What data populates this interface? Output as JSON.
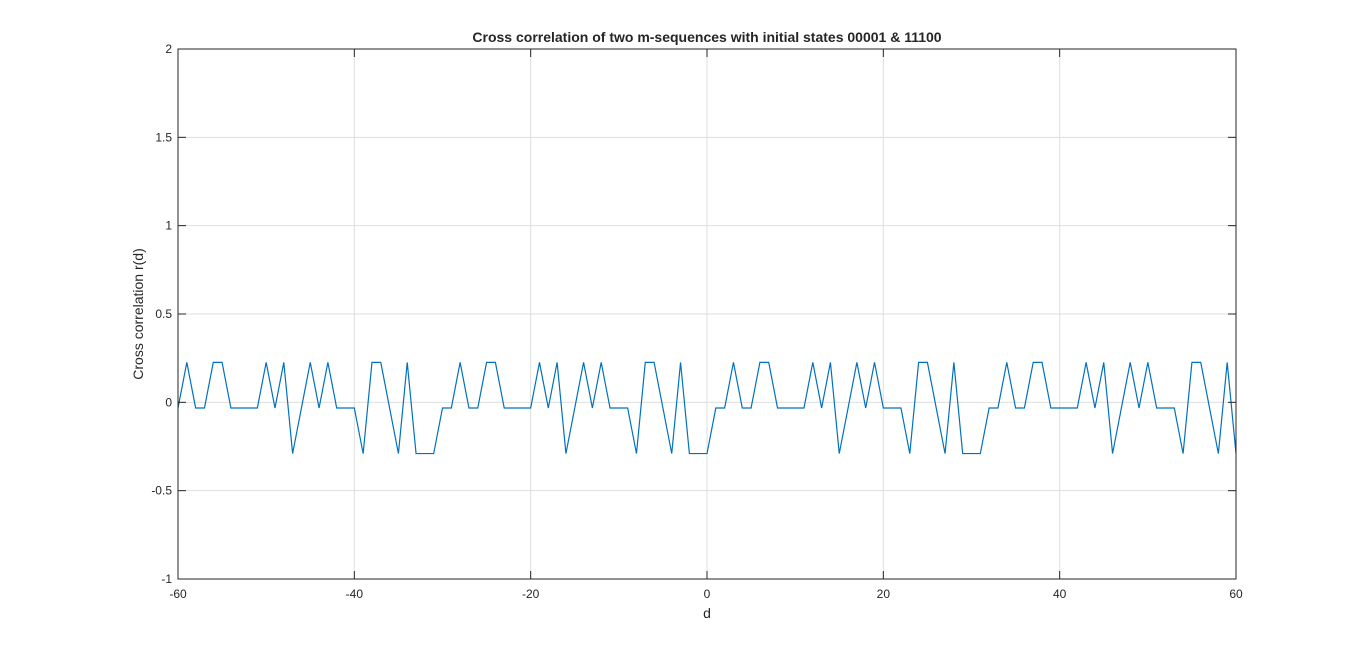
{
  "chart_data": {
    "type": "line",
    "title": "Cross correlation of two m-sequences with initial states 00001 & 11100",
    "xlabel": "d",
    "ylabel": "Cross correlation r(d)",
    "xlim": [
      -60,
      60
    ],
    "ylim": [
      -1,
      2
    ],
    "xticks": [
      -60,
      -40,
      -20,
      0,
      20,
      40,
      60
    ],
    "xtick_labels": [
      "-60",
      "-40",
      "-20",
      "0",
      "20",
      "40",
      "60"
    ],
    "yticks": [
      -1,
      -0.5,
      0,
      0.5,
      1,
      1.5,
      2
    ],
    "ytick_labels": [
      "-1",
      "-0.5",
      "0",
      "0.5",
      "1",
      "1.5",
      "2"
    ],
    "grid": true,
    "line_color": "#0072BD",
    "series": [
      {
        "x": [
          -60,
          -59,
          -58,
          -57,
          -56,
          -55,
          -54,
          -53,
          -52,
          -51,
          -50,
          -49,
          -48,
          -47,
          -46,
          -45,
          -44,
          -43,
          -42,
          -41,
          -40,
          -39,
          -38,
          -37,
          -36,
          -35,
          -34,
          -33,
          -32,
          -31,
          -30,
          -29,
          -28,
          -27,
          -26,
          -25,
          -24,
          -23,
          -22,
          -21,
          -20,
          -19,
          -18,
          -17,
          -16,
          -15,
          -14,
          -13,
          -12,
          -11,
          -10,
          -9,
          -8,
          -7,
          -6,
          -5,
          -4,
          -3,
          -2,
          -1,
          0,
          1,
          2,
          3,
          4,
          5,
          6,
          7,
          8,
          9,
          10,
          11,
          12,
          13,
          14,
          15,
          16,
          17,
          18,
          19,
          20,
          21,
          22,
          23,
          24,
          25,
          26,
          27,
          28,
          29,
          30,
          31,
          32,
          33,
          34,
          35,
          36,
          37,
          38,
          39,
          40,
          41,
          42,
          43,
          44,
          45,
          46,
          47,
          48,
          49,
          50,
          51,
          52,
          53,
          54,
          55,
          56,
          57,
          58,
          59,
          60
        ],
        "y": [
          -0.032,
          0.226,
          -0.032,
          -0.032,
          0.226,
          0.226,
          -0.032,
          -0.032,
          -0.032,
          -0.032,
          0.226,
          -0.032,
          0.226,
          -0.29,
          -0.032,
          0.226,
          -0.032,
          0.226,
          -0.032,
          -0.032,
          -0.032,
          -0.29,
          0.226,
          0.226,
          -0.032,
          -0.29,
          0.226,
          -0.29,
          -0.29,
          -0.29,
          -0.032,
          -0.032,
          0.226,
          -0.032,
          -0.032,
          0.226,
          0.226,
          -0.032,
          -0.032,
          -0.032,
          -0.032,
          0.226,
          -0.032,
          0.226,
          -0.29,
          -0.032,
          0.226,
          -0.032,
          0.226,
          -0.032,
          -0.032,
          -0.032,
          -0.29,
          0.226,
          0.226,
          -0.032,
          -0.29,
          0.226,
          -0.29,
          -0.29,
          -0.29,
          -0.032,
          -0.032,
          0.226,
          -0.032,
          -0.032,
          0.226,
          0.226,
          -0.032,
          -0.032,
          -0.032,
          -0.032,
          0.226,
          -0.032,
          0.226,
          -0.29,
          -0.032,
          0.226,
          -0.032,
          0.226,
          -0.032,
          -0.032,
          -0.032,
          -0.29,
          0.226,
          0.226,
          -0.032,
          -0.29,
          0.226,
          -0.29,
          -0.29,
          -0.29,
          -0.032,
          -0.032,
          0.226,
          -0.032,
          -0.032,
          0.226,
          0.226,
          -0.032,
          -0.032,
          -0.032,
          -0.032,
          0.226,
          -0.032,
          0.226,
          -0.29,
          -0.032,
          0.226,
          -0.032,
          0.226,
          -0.032,
          -0.032,
          -0.032,
          -0.29,
          0.226,
          0.226,
          -0.032,
          -0.29,
          0.226,
          -0.29
        ]
      }
    ]
  }
}
